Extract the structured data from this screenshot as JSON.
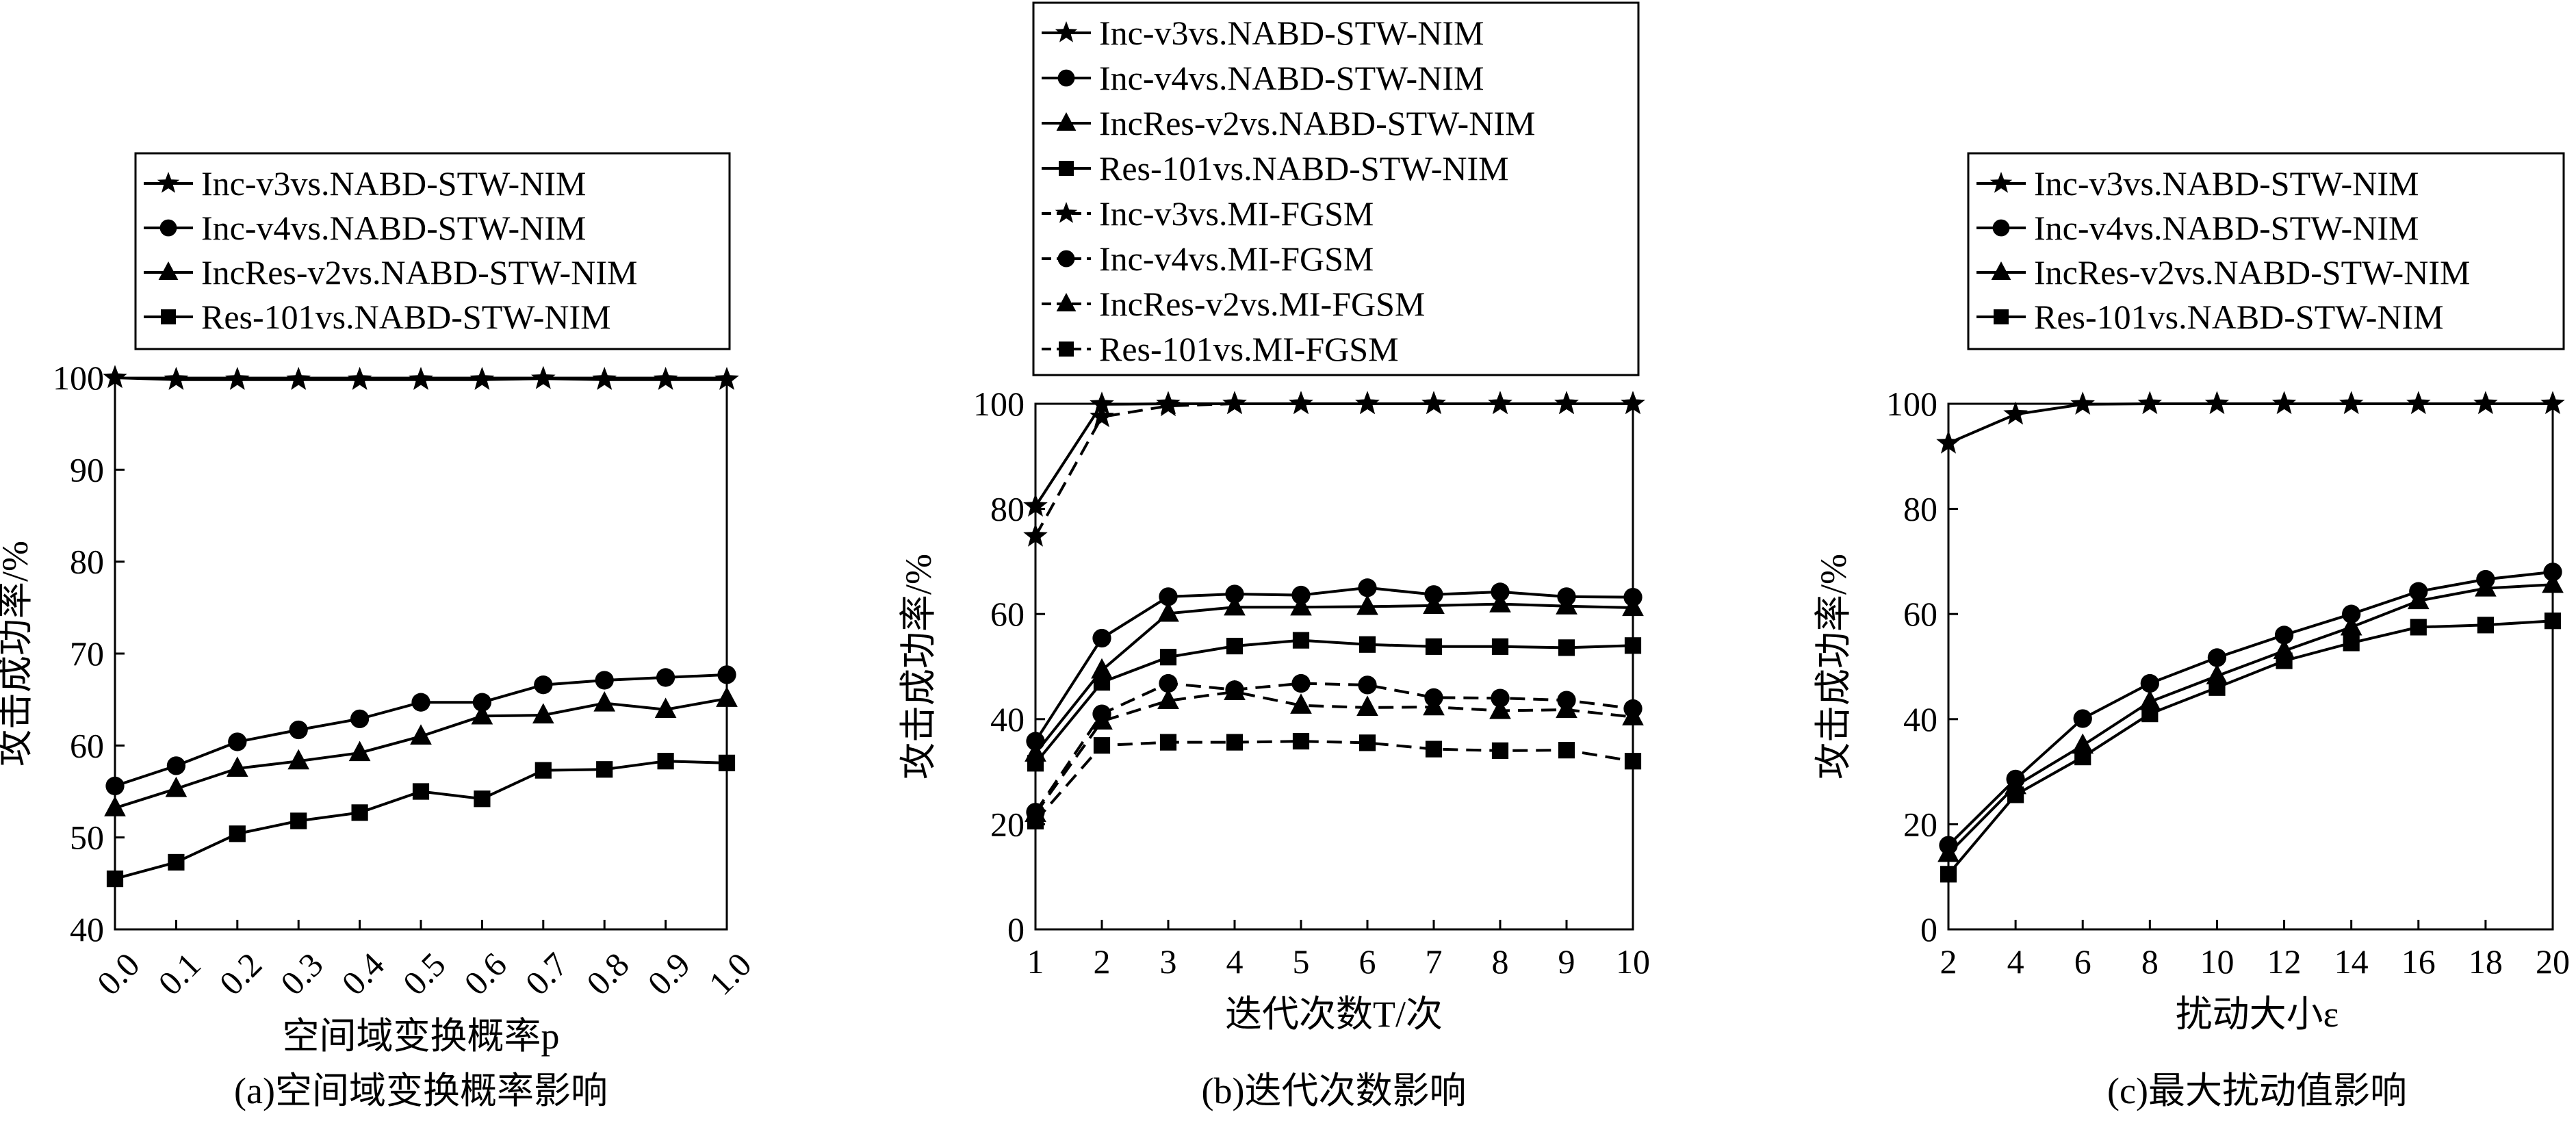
{
  "chart_data": [
    {
      "type": "line",
      "caption": "(a)空间域变换概率影响",
      "xlabel": "空间域变换概率p",
      "ylabel": "攻击成功率/%",
      "x": [
        0.0,
        0.1,
        0.2,
        0.3,
        0.4,
        0.5,
        0.6,
        0.7,
        0.8,
        0.9,
        1.0
      ],
      "xticks": [
        "0.0",
        "0.1",
        "0.2",
        "0.3",
        "0.4",
        "0.5",
        "0.6",
        "0.7",
        "0.8",
        "0.9",
        "1.0"
      ],
      "yticks": [
        "40",
        "50",
        "60",
        "70",
        "80",
        "90",
        "100"
      ],
      "xlim": [
        0,
        1
      ],
      "ylim": [
        40,
        100
      ],
      "legend_position": "top",
      "grid": false,
      "series": [
        {
          "name": "Inc-v3vs.NABD-STW-NIM",
          "marker": "star",
          "dash": "solid",
          "values": [
            100,
            99.8,
            99.8,
            99.8,
            99.8,
            99.8,
            99.8,
            99.9,
            99.8,
            99.8,
            99.8
          ]
        },
        {
          "name": "Inc-v4vs.NABD-STW-NIM",
          "marker": "circle",
          "dash": "solid",
          "values": [
            55.6,
            57.8,
            60.4,
            61.7,
            62.9,
            64.7,
            64.7,
            66.6,
            67.1,
            67.4,
            67.7
          ]
        },
        {
          "name": "IncRes-v2vs.NABD-STW-NIM",
          "marker": "triangle",
          "dash": "solid",
          "values": [
            53.2,
            55.3,
            57.5,
            58.3,
            59.2,
            61.0,
            63.2,
            63.3,
            64.6,
            63.9,
            65.1
          ]
        },
        {
          "name": "Res-101vs.NABD-STW-NIM",
          "marker": "square",
          "dash": "solid",
          "values": [
            45.5,
            47.3,
            50.4,
            51.8,
            52.7,
            55.0,
            54.2,
            57.3,
            57.4,
            58.3,
            58.1
          ]
        }
      ]
    },
    {
      "type": "line",
      "caption": "(b)迭代次数影响",
      "xlabel": "迭代次数T/次",
      "ylabel": "攻击成功率/%",
      "x": [
        1,
        2,
        3,
        4,
        5,
        6,
        7,
        8,
        9,
        10
      ],
      "xticks": [
        "1",
        "2",
        "3",
        "4",
        "5",
        "6",
        "7",
        "8",
        "9",
        "10"
      ],
      "yticks": [
        "0",
        "20",
        "40",
        "60",
        "80",
        "100"
      ],
      "xlim": [
        1,
        10
      ],
      "ylim": [
        0,
        100
      ],
      "legend_position": "top",
      "grid": false,
      "series": [
        {
          "name": "Inc-v3vs.NABD-STW-NIM",
          "marker": "star",
          "dash": "solid",
          "values": [
            80.5,
            99.9,
            100,
            100,
            100,
            100,
            100,
            100,
            100,
            100
          ]
        },
        {
          "name": "Inc-v4vs.NABD-STW-NIM",
          "marker": "circle",
          "dash": "solid",
          "values": [
            35.8,
            55.4,
            63.3,
            63.8,
            63.6,
            65.0,
            63.7,
            64.2,
            63.3,
            63.2
          ]
        },
        {
          "name": "IncRes-v2vs.NABD-STW-NIM",
          "marker": "triangle",
          "dash": "solid",
          "values": [
            33.5,
            49.3,
            60.1,
            61.3,
            61.3,
            61.4,
            61.6,
            61.9,
            61.5,
            61.2
          ]
        },
        {
          "name": "Res-101vs.NABD-STW-NIM",
          "marker": "square",
          "dash": "solid",
          "values": [
            31.6,
            47.0,
            51.8,
            53.9,
            55.0,
            54.2,
            53.8,
            53.8,
            53.6,
            54.0
          ]
        },
        {
          "name": "Inc-v3vs.MI-FGSM",
          "marker": "star",
          "dash": "dashed",
          "values": [
            74.8,
            97.5,
            99.6,
            100,
            100,
            100,
            100,
            100,
            100,
            100
          ]
        },
        {
          "name": "Inc-v4vs.MI-FGSM",
          "marker": "circle",
          "dash": "dashed",
          "values": [
            22.3,
            41.0,
            46.8,
            45.6,
            46.8,
            46.5,
            44.1,
            44.0,
            43.6,
            42.0
          ]
        },
        {
          "name": "IncRes-v2vs.MI-FGSM",
          "marker": "triangle",
          "dash": "dashed",
          "values": [
            22.0,
            39.6,
            43.5,
            45.2,
            42.6,
            42.2,
            42.3,
            41.6,
            41.8,
            40.4
          ]
        },
        {
          "name": "Res-101vs.MI-FGSM",
          "marker": "square",
          "dash": "dashed",
          "values": [
            20.6,
            35.0,
            35.6,
            35.6,
            35.8,
            35.5,
            34.3,
            34.0,
            34.1,
            32.0
          ]
        }
      ]
    },
    {
      "type": "line",
      "caption": "(c)最大扰动值影响",
      "xlabel": "扰动大小ε",
      "ylabel": "攻击成功率/%",
      "x": [
        2,
        4,
        6,
        8,
        10,
        12,
        14,
        16,
        18,
        20
      ],
      "xticks": [
        "2",
        "4",
        "6",
        "8",
        "10",
        "12",
        "14",
        "16",
        "18",
        "20"
      ],
      "yticks": [
        "0",
        "20",
        "40",
        "60",
        "80",
        "100"
      ],
      "xlim": [
        2,
        20
      ],
      "ylim": [
        0,
        100
      ],
      "legend_position": "top",
      "grid": false,
      "series": [
        {
          "name": "Inc-v3vs.NABD-STW-NIM",
          "marker": "star",
          "dash": "solid",
          "values": [
            92.5,
            98.0,
            99.9,
            100,
            100,
            100,
            100,
            100,
            100,
            100
          ]
        },
        {
          "name": "Inc-v4vs.NABD-STW-NIM",
          "marker": "circle",
          "dash": "solid",
          "values": [
            16.0,
            28.6,
            40.1,
            46.8,
            51.7,
            56.0,
            60.0,
            64.3,
            66.6,
            68.0
          ]
        },
        {
          "name": "IncRes-v2vs.NABD-STW-NIM",
          "marker": "triangle",
          "dash": "solid",
          "values": [
            14.4,
            27.3,
            35.0,
            43.3,
            48.2,
            53.0,
            57.5,
            62.5,
            64.9,
            65.6
          ]
        },
        {
          "name": "Res-101vs.NABD-STW-NIM",
          "marker": "square",
          "dash": "solid",
          "values": [
            10.5,
            25.6,
            32.8,
            41.0,
            46.0,
            51.1,
            54.5,
            57.5,
            57.9,
            58.7
          ]
        }
      ]
    }
  ]
}
